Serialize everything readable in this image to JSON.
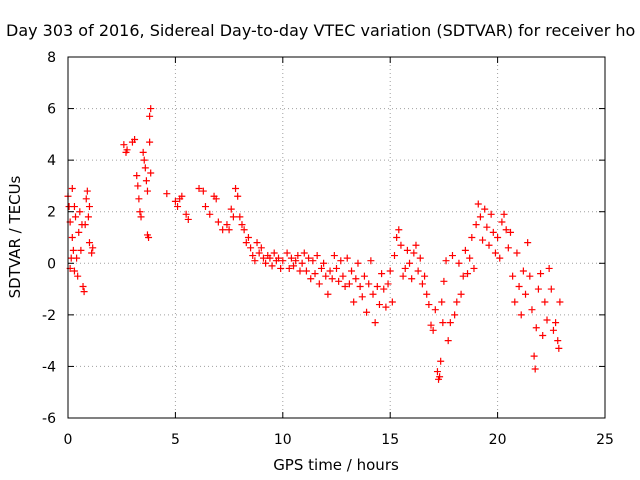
{
  "chart_data": {
    "type": "scatter",
    "title": "Day 303 of 2016, Sidereal Day-to-day VTEC variation (SDTVAR) for receiver ho",
    "xlabel": "GPS time / hours",
    "ylabel": "SDTVAR / TECUs",
    "xlim": [
      0,
      25
    ],
    "ylim": [
      -6,
      8
    ],
    "xticks": [
      0,
      5,
      10,
      15,
      20,
      25
    ],
    "yticks": [
      -6,
      -4,
      -2,
      0,
      2,
      4,
      6,
      8
    ],
    "grid": true,
    "marker": "+",
    "color": "#ff0000",
    "series": [
      {
        "name": "SDTVAR",
        "points": [
          [
            0.0,
            2.6
          ],
          [
            0.05,
            2.2
          ],
          [
            0.1,
            1.6
          ],
          [
            0.1,
            -0.2
          ],
          [
            0.15,
            0.2
          ],
          [
            0.2,
            2.9
          ],
          [
            0.2,
            1.0
          ],
          [
            0.25,
            0.5
          ],
          [
            0.3,
            -0.3
          ],
          [
            0.3,
            2.2
          ],
          [
            0.35,
            1.8
          ],
          [
            0.4,
            0.2
          ],
          [
            0.45,
            -0.5
          ],
          [
            0.5,
            1.2
          ],
          [
            0.55,
            2.0
          ],
          [
            0.6,
            0.5
          ],
          [
            0.65,
            1.5
          ],
          [
            0.7,
            -0.9
          ],
          [
            0.75,
            -1.1
          ],
          [
            0.8,
            1.5
          ],
          [
            0.85,
            2.5
          ],
          [
            0.9,
            2.8
          ],
          [
            0.95,
            1.8
          ],
          [
            1.0,
            2.2
          ],
          [
            1.0,
            0.8
          ],
          [
            1.1,
            0.4
          ],
          [
            1.15,
            0.6
          ],
          [
            2.6,
            4.6
          ],
          [
            2.7,
            4.3
          ],
          [
            2.75,
            4.4
          ],
          [
            3.0,
            4.7
          ],
          [
            3.1,
            4.8
          ],
          [
            3.2,
            3.4
          ],
          [
            3.25,
            3.0
          ],
          [
            3.3,
            2.5
          ],
          [
            3.35,
            2.0
          ],
          [
            3.4,
            1.8
          ],
          [
            3.5,
            4.3
          ],
          [
            3.55,
            4.0
          ],
          [
            3.6,
            3.7
          ],
          [
            3.65,
            3.2
          ],
          [
            3.7,
            2.8
          ],
          [
            3.7,
            1.1
          ],
          [
            3.75,
            1.0
          ],
          [
            3.8,
            5.7
          ],
          [
            3.85,
            6.0
          ],
          [
            3.8,
            4.7
          ],
          [
            3.85,
            3.5
          ],
          [
            4.6,
            2.7
          ],
          [
            5.0,
            2.4
          ],
          [
            5.1,
            2.2
          ],
          [
            5.2,
            2.5
          ],
          [
            5.3,
            2.6
          ],
          [
            5.5,
            1.9
          ],
          [
            5.6,
            1.7
          ],
          [
            6.1,
            2.9
          ],
          [
            6.3,
            2.8
          ],
          [
            6.4,
            2.2
          ],
          [
            6.6,
            1.9
          ],
          [
            6.8,
            2.6
          ],
          [
            6.9,
            2.5
          ],
          [
            7.0,
            1.6
          ],
          [
            7.2,
            1.3
          ],
          [
            7.4,
            1.5
          ],
          [
            7.5,
            1.3
          ],
          [
            7.6,
            2.1
          ],
          [
            7.7,
            1.8
          ],
          [
            7.8,
            2.9
          ],
          [
            7.9,
            2.6
          ],
          [
            8.0,
            1.8
          ],
          [
            8.1,
            1.5
          ],
          [
            8.2,
            1.3
          ],
          [
            8.3,
            0.8
          ],
          [
            8.4,
            1.0
          ],
          [
            8.5,
            0.6
          ],
          [
            8.6,
            0.3
          ],
          [
            8.7,
            0.1
          ],
          [
            8.8,
            0.8
          ],
          [
            8.9,
            0.4
          ],
          [
            9.0,
            0.6
          ],
          [
            9.1,
            0.2
          ],
          [
            9.2,
            0.0
          ],
          [
            9.3,
            0.3
          ],
          [
            9.4,
            0.2
          ],
          [
            9.5,
            -0.1
          ],
          [
            9.6,
            0.4
          ],
          [
            9.7,
            0.1
          ],
          [
            9.8,
            0.2
          ],
          [
            9.9,
            -0.2
          ],
          [
            10.0,
            0.1
          ],
          [
            10.2,
            0.4
          ],
          [
            10.3,
            -0.2
          ],
          [
            10.4,
            0.2
          ],
          [
            10.5,
            -0.1
          ],
          [
            10.6,
            0.1
          ],
          [
            10.7,
            0.3
          ],
          [
            10.8,
            -0.3
          ],
          [
            10.9,
            0.0
          ],
          [
            11.0,
            0.4
          ],
          [
            11.1,
            -0.3
          ],
          [
            11.2,
            0.2
          ],
          [
            11.3,
            -0.6
          ],
          [
            11.4,
            0.1
          ],
          [
            11.5,
            -0.4
          ],
          [
            11.6,
            0.3
          ],
          [
            11.7,
            -0.8
          ],
          [
            11.8,
            -0.2
          ],
          [
            11.9,
            0.0
          ],
          [
            12.0,
            -0.5
          ],
          [
            12.1,
            -1.2
          ],
          [
            12.2,
            -0.3
          ],
          [
            12.3,
            -0.6
          ],
          [
            12.4,
            0.3
          ],
          [
            12.5,
            -0.2
          ],
          [
            12.6,
            -0.7
          ],
          [
            12.7,
            0.1
          ],
          [
            12.8,
            -0.5
          ],
          [
            12.9,
            -0.9
          ],
          [
            13.0,
            0.2
          ],
          [
            13.1,
            -0.8
          ],
          [
            13.2,
            -0.3
          ],
          [
            13.3,
            -1.5
          ],
          [
            13.4,
            -0.6
          ],
          [
            13.5,
            0.0
          ],
          [
            13.6,
            -0.9
          ],
          [
            13.7,
            -1.3
          ],
          [
            13.8,
            -0.5
          ],
          [
            13.9,
            -1.9
          ],
          [
            14.0,
            -0.8
          ],
          [
            14.1,
            0.1
          ],
          [
            14.2,
            -1.2
          ],
          [
            14.3,
            -2.3
          ],
          [
            14.4,
            -0.9
          ],
          [
            14.5,
            -1.6
          ],
          [
            14.6,
            -0.4
          ],
          [
            14.7,
            -1.0
          ],
          [
            14.8,
            -1.7
          ],
          [
            14.9,
            -0.8
          ],
          [
            15.0,
            -0.3
          ],
          [
            15.1,
            -1.5
          ],
          [
            15.2,
            0.3
          ],
          [
            15.3,
            1.0
          ],
          [
            15.4,
            1.3
          ],
          [
            15.5,
            0.7
          ],
          [
            15.6,
            -0.5
          ],
          [
            15.7,
            -0.2
          ],
          [
            15.8,
            0.5
          ],
          [
            15.9,
            0.0
          ],
          [
            16.0,
            -0.6
          ],
          [
            16.1,
            0.4
          ],
          [
            16.2,
            0.7
          ],
          [
            16.3,
            -0.3
          ],
          [
            16.4,
            0.2
          ],
          [
            16.5,
            -0.8
          ],
          [
            16.6,
            -0.5
          ],
          [
            16.7,
            -1.2
          ],
          [
            16.8,
            -1.6
          ],
          [
            16.9,
            -2.4
          ],
          [
            17.0,
            -2.6
          ],
          [
            17.1,
            -1.8
          ],
          [
            17.2,
            -4.2
          ],
          [
            17.25,
            -4.5
          ],
          [
            17.3,
            -4.4
          ],
          [
            17.35,
            -3.8
          ],
          [
            17.4,
            -1.5
          ],
          [
            17.45,
            -2.3
          ],
          [
            17.5,
            -0.7
          ],
          [
            17.6,
            0.1
          ],
          [
            17.7,
            -3.0
          ],
          [
            17.8,
            -2.3
          ],
          [
            17.9,
            0.3
          ],
          [
            18.0,
            -2.0
          ],
          [
            18.1,
            -1.5
          ],
          [
            18.2,
            0.0
          ],
          [
            18.3,
            -1.2
          ],
          [
            18.4,
            -0.5
          ],
          [
            18.5,
            0.5
          ],
          [
            18.6,
            -0.4
          ],
          [
            18.7,
            0.2
          ],
          [
            18.8,
            1.0
          ],
          [
            18.9,
            -0.2
          ],
          [
            19.0,
            1.5
          ],
          [
            19.1,
            2.3
          ],
          [
            19.2,
            1.8
          ],
          [
            19.3,
            0.9
          ],
          [
            19.4,
            2.1
          ],
          [
            19.5,
            1.4
          ],
          [
            19.6,
            0.7
          ],
          [
            19.7,
            1.9
          ],
          [
            19.8,
            1.2
          ],
          [
            19.9,
            0.4
          ],
          [
            20.0,
            1.0
          ],
          [
            20.1,
            0.2
          ],
          [
            20.2,
            1.6
          ],
          [
            20.3,
            1.9
          ],
          [
            20.4,
            1.3
          ],
          [
            20.5,
            0.6
          ],
          [
            20.6,
            1.2
          ],
          [
            20.7,
            -0.5
          ],
          [
            20.8,
            -1.5
          ],
          [
            20.9,
            0.4
          ],
          [
            21.0,
            -0.9
          ],
          [
            21.1,
            -2.0
          ],
          [
            21.2,
            -0.3
          ],
          [
            21.3,
            -1.2
          ],
          [
            21.4,
            0.8
          ],
          [
            21.5,
            -0.5
          ],
          [
            21.6,
            -1.8
          ],
          [
            21.7,
            -3.6
          ],
          [
            21.75,
            -4.1
          ],
          [
            21.8,
            -2.5
          ],
          [
            21.9,
            -1.0
          ],
          [
            22.0,
            -0.4
          ],
          [
            22.1,
            -2.8
          ],
          [
            22.2,
            -1.5
          ],
          [
            22.3,
            -2.2
          ],
          [
            22.4,
            -0.2
          ],
          [
            22.5,
            -1.0
          ],
          [
            22.6,
            -2.6
          ],
          [
            22.7,
            -2.3
          ],
          [
            22.8,
            -3.0
          ],
          [
            22.85,
            -3.3
          ],
          [
            22.9,
            -1.5
          ]
        ]
      }
    ]
  }
}
